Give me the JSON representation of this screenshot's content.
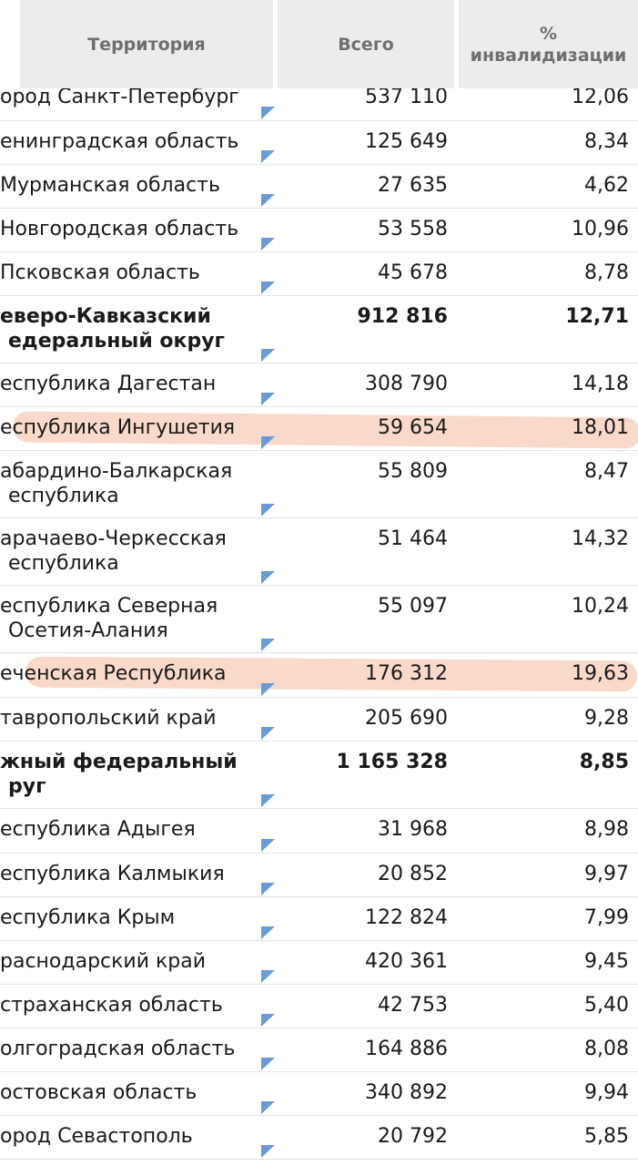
{
  "header": {
    "territory": "Территория",
    "total": "Всего",
    "pct_line1": "%",
    "pct_line2": "инвалидизации"
  },
  "rows": [
    {
      "name": "ород Санкт-Петербург",
      "total": "537 110",
      "pct": "12,06",
      "bold": false
    },
    {
      "name": "енинградская область",
      "total": "125 649",
      "pct": "8,34",
      "bold": false
    },
    {
      "name": "Мурманская область",
      "total": "27 635",
      "pct": "4,62",
      "bold": false
    },
    {
      "name": "Новгородская область",
      "total": "53 558",
      "pct": "10,96",
      "bold": false
    },
    {
      "name": "Псковская область",
      "total": "45 678",
      "pct": "8,78",
      "bold": false
    },
    {
      "name": "еверо-Кавказский\nедеральный округ",
      "total": "912 816",
      "pct": "12,71",
      "bold": true
    },
    {
      "name": "еспублика Дагестан",
      "total": "308 790",
      "pct": "14,18",
      "bold": false
    },
    {
      "name": "еспублика Ингушетия",
      "total": "59 654",
      "pct": "18,01",
      "bold": false
    },
    {
      "name": "абардино-Балкарская\nеспублика",
      "total": "55 809",
      "pct": "8,47",
      "bold": false
    },
    {
      "name": "арачаево-Черкесская\nеспублика",
      "total": "51 464",
      "pct": "14,32",
      "bold": false
    },
    {
      "name": "еспублика Северная\nОсетия-Алания",
      "total": "55 097",
      "pct": "10,24",
      "bold": false
    },
    {
      "name": "еченская Республика",
      "total": "176 312",
      "pct": "19,63",
      "bold": false
    },
    {
      "name": "тавропольский край",
      "total": "205 690",
      "pct": "9,28",
      "bold": false
    },
    {
      "name": "жный федеральный\nруг",
      "total": "1 165 328",
      "pct": "8,85",
      "bold": true
    },
    {
      "name": "еспублика Адыгея",
      "total": "31 968",
      "pct": "8,98",
      "bold": false
    },
    {
      "name": "еспублика Калмыкия",
      "total": "20 852",
      "pct": "9,97",
      "bold": false
    },
    {
      "name": "еспублика Крым",
      "total": "122 824",
      "pct": "7,99",
      "bold": false
    },
    {
      "name": "раснодарский край",
      "total": "420 361",
      "pct": "9,45",
      "bold": false
    },
    {
      "name": "страханская область",
      "total": "42 753",
      "pct": "5,40",
      "bold": false
    },
    {
      "name": "олгоградская область",
      "total": "164 886",
      "pct": "8,08",
      "bold": false
    },
    {
      "name": "остовская область",
      "total": "340 892",
      "pct": "9,94",
      "bold": false
    },
    {
      "name": "ород Севастополь",
      "total": "20 792",
      "pct": "5,85",
      "bold": false
    }
  ],
  "highlighted_rows": [
    "еспублика Ингушетия",
    "еченская Республика"
  ],
  "colors": {
    "header_bg": "#ececec",
    "header_text": "#6f6f6f",
    "flag": "#6b9bd6",
    "highlight": "#f6c9b2"
  }
}
